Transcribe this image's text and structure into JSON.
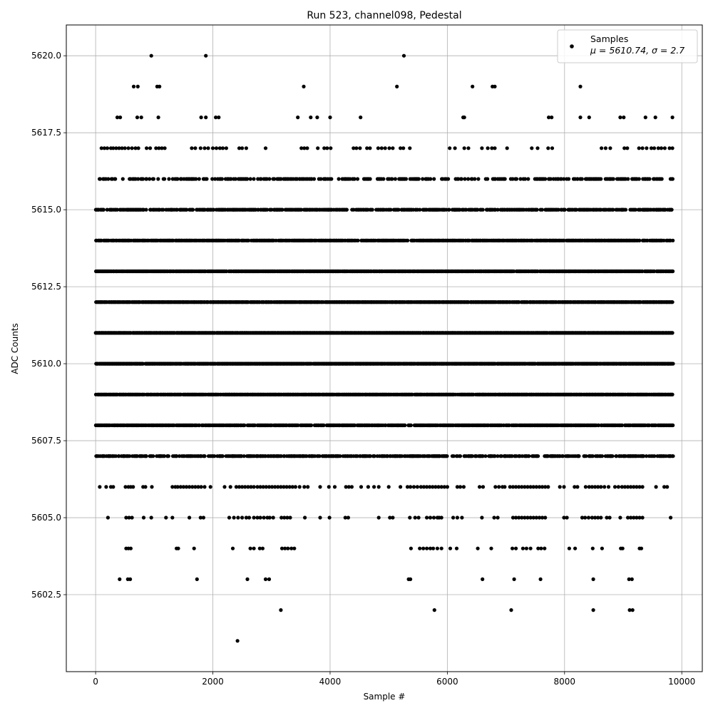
{
  "chart_data": {
    "type": "scatter",
    "title": "Run 523, channel098, Pedestal",
    "xlabel": "Sample #",
    "ylabel": "ADC Counts",
    "xlim": [
      -500,
      10350
    ],
    "ylim": [
      5600.0,
      5621.0
    ],
    "xticks": [
      0,
      2000,
      4000,
      6000,
      8000,
      10000
    ],
    "xtick_labels": [
      "0",
      "2000",
      "4000",
      "6000",
      "8000",
      "10000"
    ],
    "yticks": [
      5602.5,
      5605.0,
      5607.5,
      5610.0,
      5612.5,
      5615.0,
      5617.5,
      5620.0
    ],
    "ytick_labels": [
      "5602.5",
      "5605.0",
      "5607.5",
      "5610.0",
      "5612.5",
      "5615.0",
      "5617.5",
      "5620.0"
    ],
    "grid": true,
    "legend_position": "top-right",
    "legend_entries": [
      "Samples",
      "μ = 5610.74, σ = 2.7"
    ],
    "series": [
      {
        "name": "Samples",
        "color": "#000000",
        "n_samples": 9850,
        "x_range": [
          0,
          9850
        ],
        "levels": [
          {
            "y": 5620,
            "x": [
              950,
              1880,
              5260
            ]
          },
          {
            "y": 5619,
            "x": [
              650,
              720,
              1050,
              1090,
              3550,
              5140,
              6430,
              6770,
              6810,
              8270
            ]
          },
          {
            "y": 5618,
            "x": [
              370,
              420,
              710,
              780,
              1070,
              1800,
              1880,
              2050,
              2100,
              3450,
              3670,
              3780,
              4000,
              4520,
              6270,
              6290,
              7730,
              7780,
              8270,
              8420,
              8950,
              9010,
              9380,
              9550,
              9840
            ]
          },
          {
            "y": 5617,
            "x": [
              100,
              150,
              200,
              260,
              300,
              350,
              400,
              450,
              500,
              560,
              620,
              680,
              730,
              870,
              930,
              1030,
              1080,
              1130,
              1180,
              1640,
              1700,
              1790,
              1860,
              1920,
              2000,
              2060,
              2120,
              2170,
              2230,
              2450,
              2500,
              2570,
              2900,
              3510,
              3560,
              3610,
              3790,
              3900,
              3950,
              4010,
              4400,
              4450,
              4510,
              4630,
              4680,
              4820,
              4880,
              4940,
              5010,
              5070,
              5200,
              5250,
              5360,
              6040,
              6130,
              6290,
              6360,
              6590,
              6690,
              6760,
              6810,
              7020,
              7440,
              7540,
              7720,
              7790,
              8630,
              8700,
              8780,
              9020,
              9070,
              9270,
              9330,
              9400,
              9480,
              9530,
              9600,
              9650,
              9710,
              9790,
              9840
            ]
          },
          {
            "y": 5616,
            "x": 9850,
            "density": 0.4
          },
          {
            "y": 5615,
            "x": 9850,
            "density": 0.6
          },
          {
            "y": 5614,
            "x": 9850,
            "density": 0.8
          },
          {
            "y": 5613,
            "x": 9850,
            "density": 0.85
          },
          {
            "y": 5612,
            "x": 9850,
            "density": 0.95
          },
          {
            "y": 5611,
            "x": 9850,
            "density": 0.98
          },
          {
            "y": 5610,
            "x": 9850,
            "density": 0.95
          },
          {
            "y": 5609,
            "x": 9850,
            "density": 0.9
          },
          {
            "y": 5608,
            "x": 9850,
            "density": 0.75
          },
          {
            "y": 5607,
            "x": 9850,
            "density": 0.55
          },
          {
            "y": 5606,
            "x": [
              70,
              180,
              260,
              300,
              510,
              560,
              600,
              640,
              810,
              850,
              960,
              1310,
              1360,
              1400,
              1450,
              1500,
              1550,
              1600,
              1650,
              1700,
              1750,
              1800,
              1860,
              1960,
              2200,
              2300,
              2400,
              2450,
              2500,
              2550,
              2600,
              2650,
              2700,
              2760,
              2810,
              2860,
              2910,
              2960,
              3010,
              3060,
              3110,
              3160,
              3210,
              3260,
              3310,
              3360,
              3410,
              3480,
              3560,
              3620,
              3830,
              3980,
              4080,
              4270,
              4320,
              4370,
              4530,
              4650,
              4750,
              4830,
              5000,
              5200,
              5320,
              5370,
              5430,
              5490,
              5550,
              5600,
              5650,
              5700,
              5750,
              5800,
              5850,
              5900,
              5950,
              6000,
              6170,
              6220,
              6280,
              6550,
              6610,
              6820,
              6880,
              6940,
              6980,
              7070,
              7120,
              7170,
              7220,
              7270,
              7320,
              7370,
              7420,
              7470,
              7520,
              7570,
              7620,
              7670,
              7720,
              7920,
              7990,
              8170,
              8220,
              8360,
              8420,
              8470,
              8520,
              8570,
              8620,
              8680,
              8750,
              8860,
              8920,
              8980,
              9030,
              9080,
              9130,
              9180,
              9230,
              9280,
              9330,
              9560,
              9700,
              9750
            ]
          },
          {
            "y": 5605,
            "x": [
              210,
              520,
              570,
              620,
              820,
              950,
              1200,
              1310,
              1600,
              1790,
              1840,
              2280,
              2360,
              2430,
              2500,
              2570,
              2620,
              2700,
              2760,
              2810,
              2870,
              2930,
              2970,
              3030,
              3170,
              3220,
              3270,
              3320,
              3570,
              3830,
              3990,
              4260,
              4310,
              4830,
              5020,
              5070,
              5360,
              5450,
              5510,
              5650,
              5710,
              5770,
              5830,
              5860,
              5900,
              6100,
              6170,
              6250,
              6590,
              6800,
              6860,
              7120,
              7170,
              7220,
              7270,
              7320,
              7370,
              7420,
              7470,
              7520,
              7570,
              7620,
              7670,
              7990,
              8040,
              8300,
              8350,
              8410,
              8470,
              8520,
              8570,
              8620,
              8720,
              8770,
              8950,
              9080,
              9130,
              9180,
              9230,
              9280,
              9330,
              9810
            ]
          },
          {
            "y": 5604,
            "x": [
              520,
              560,
              600,
              1380,
              1410,
              1680,
              2340,
              2640,
              2700,
              2800,
              2850,
              3180,
              3230,
              3280,
              3340,
              3390,
              5380,
              5530,
              5590,
              5650,
              5710,
              5760,
              5830,
              5900,
              6050,
              6160,
              6520,
              6750,
              7110,
              7170,
              7290,
              7350,
              7420,
              7550,
              7600,
              7660,
              8080,
              8180,
              8480,
              8640,
              8960,
              8990,
              9280,
              9310
            ]
          },
          {
            "y": 5603,
            "x": [
              410,
              550,
              590,
              1730,
              2590,
              2900,
              2960,
              5340,
              5370,
              6600,
              7140,
              7590,
              8490,
              9100,
              9150
            ]
          },
          {
            "y": 5602,
            "x": [
              3160,
              5780,
              7090,
              8490,
              9110,
              9160
            ]
          },
          {
            "y": 5601,
            "x": [
              2420
            ]
          }
        ]
      }
    ]
  }
}
